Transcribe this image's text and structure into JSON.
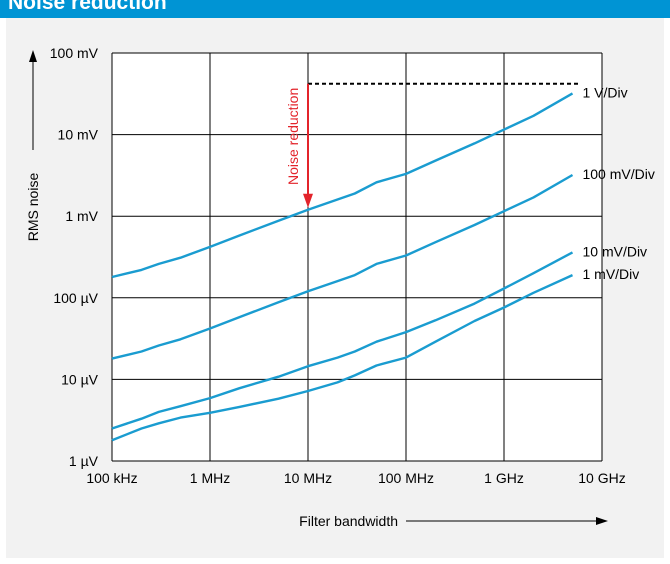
{
  "header": {
    "title": "Noise reduction"
  },
  "colors": {
    "header_bg": "#0094d4",
    "series": "#1a9cd0",
    "annotation": "#e3242b",
    "panel_bg": "#f2f2f2"
  },
  "chart_data": {
    "type": "line",
    "title": "",
    "xlabel": "Filter bandwidth",
    "ylabel": "RMS noise",
    "x_scale": "log",
    "y_scale": "log",
    "xlim": [
      100000,
      10000000000
    ],
    "ylim": [
      1e-06,
      0.1
    ],
    "grid": true,
    "x_tick_labels": [
      "100 kHz",
      "1 MHz",
      "10 MHz",
      "100 MHz",
      "1 GHz",
      "10 GHz"
    ],
    "y_tick_labels": [
      "100 mV",
      "10 mV",
      "1 mV",
      "100 µV",
      "10 µV",
      "1 µV"
    ],
    "series": [
      {
        "name": "1 V/Div",
        "x": [
          100000,
          200000,
          300000,
          500000,
          1000000,
          2000000,
          5000000,
          10000000,
          20000000,
          30000000,
          50000000,
          100000000,
          200000000,
          500000000,
          1000000000,
          2000000000,
          5000000000
        ],
        "y": [
          0.00018,
          0.00022,
          0.00026,
          0.00031,
          0.00042,
          0.00058,
          0.00088,
          0.0012,
          0.0016,
          0.0019,
          0.0026,
          0.0033,
          0.0048,
          0.0078,
          0.0115,
          0.017,
          0.032
        ]
      },
      {
        "name": "100 mV/Div",
        "x": [
          100000,
          200000,
          300000,
          500000,
          1000000,
          2000000,
          5000000,
          10000000,
          20000000,
          30000000,
          50000000,
          100000000,
          200000000,
          500000000,
          1000000000,
          2000000000,
          5000000000
        ],
        "y": [
          1.8e-05,
          2.2e-05,
          2.6e-05,
          3.1e-05,
          4.2e-05,
          5.8e-05,
          8.8e-05,
          0.00012,
          0.00016,
          0.00019,
          0.00026,
          0.00033,
          0.00048,
          0.00078,
          0.00115,
          0.0017,
          0.0032
        ]
      },
      {
        "name": "10 mV/Div",
        "x": [
          100000,
          200000,
          300000,
          500000,
          1000000,
          2000000,
          5000000,
          10000000,
          20000000,
          30000000,
          50000000,
          100000000,
          200000000,
          500000000,
          1000000000,
          2000000000,
          5000000000
        ],
        "y": [
          2.5e-06,
          3.3e-06,
          4e-06,
          4.7e-06,
          5.9e-06,
          7.8e-06,
          1.08e-05,
          1.45e-05,
          1.85e-05,
          2.2e-05,
          2.9e-05,
          3.8e-05,
          5.3e-05,
          8.5e-05,
          0.00013,
          0.0002,
          0.00036
        ]
      },
      {
        "name": "1 mV/Div",
        "x": [
          100000,
          200000,
          300000,
          500000,
          1000000,
          2000000,
          5000000,
          10000000,
          20000000,
          30000000,
          50000000,
          100000000,
          200000000,
          500000000,
          1000000000,
          2000000000,
          5000000000
        ],
        "y": [
          1.8e-06,
          2.5e-06,
          2.9e-06,
          3.4e-06,
          3.9e-06,
          4.6e-06,
          5.8e-06,
          7.2e-06,
          9.2e-06,
          1.12e-05,
          1.48e-05,
          1.85e-05,
          2.9e-05,
          5.2e-05,
          7.6e-05,
          0.000115,
          0.00019
        ]
      }
    ],
    "annotation": {
      "text": "Noise reduction",
      "x": 10000000,
      "y_from": 0.042,
      "y_to": 0.0012,
      "reference_line": {
        "y": 0.042,
        "x_from": 10000000,
        "x_to": 5000000000
      }
    }
  }
}
